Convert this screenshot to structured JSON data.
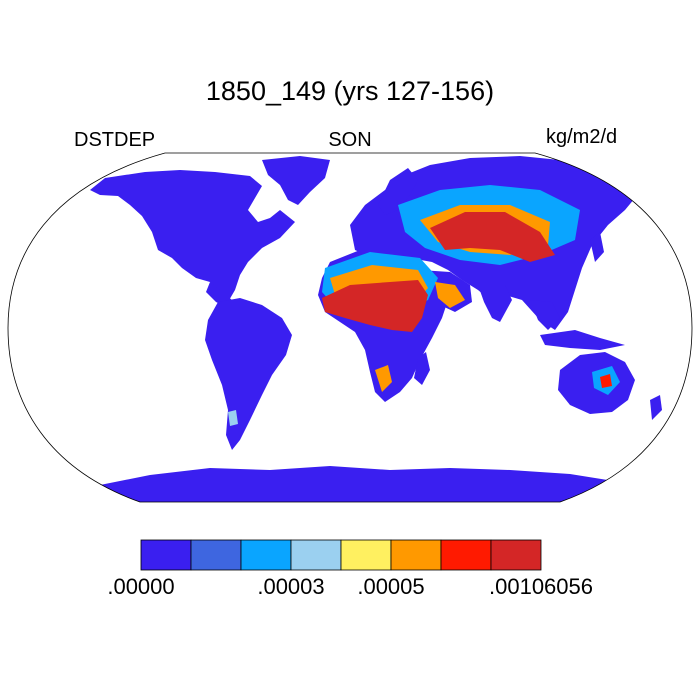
{
  "title": "1850_149 (yrs 127-156)",
  "left_label": "DSTDEP",
  "center_label": "SON",
  "right_label": "kg/m2/d",
  "colorbar": {
    "colors": [
      "#3a1ff0",
      "#3e66e0",
      "#0aa5ff",
      "#9bd0f0",
      "#fff060",
      "#ff9900",
      "#ff1a00",
      "#d42626"
    ],
    "tick_labels": [
      {
        "text": ".00000",
        "boundary": 0
      },
      {
        "text": ".00003",
        "boundary": 3
      },
      {
        "text": ".00005",
        "boundary": 5
      },
      {
        "text": ".00106056",
        "boundary": 8
      }
    ]
  },
  "ocean_color": "#ffffff",
  "land_base_color": "#3a1ff0"
}
